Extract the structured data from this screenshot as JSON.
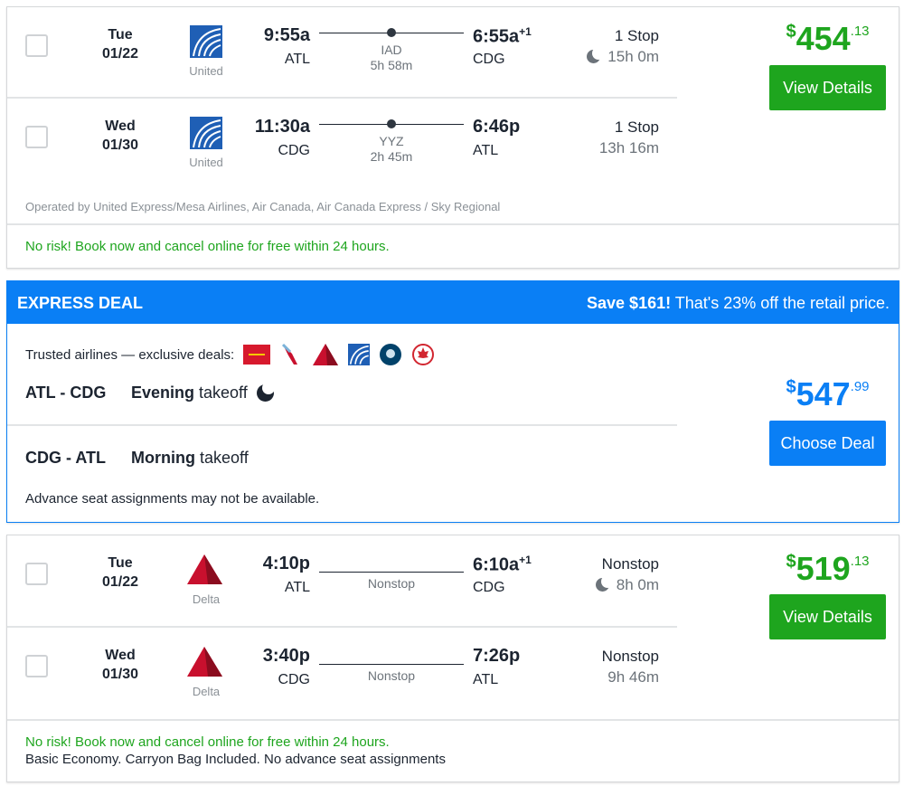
{
  "cards": [
    {
      "legs": [
        {
          "day": "Tue",
          "date": "01/22",
          "airline": "United",
          "dep_time": "9:55a",
          "dep_airport": "ATL",
          "via": "IAD",
          "via_duration": "5h 58m",
          "arr_time": "6:55a",
          "arr_offset": "+1",
          "arr_airport": "CDG",
          "stops": "1 Stop",
          "duration": "15h 0m",
          "overnight": true
        },
        {
          "day": "Wed",
          "date": "01/30",
          "airline": "United",
          "dep_time": "11:30a",
          "dep_airport": "CDG",
          "via": "YYZ",
          "via_duration": "2h 45m",
          "arr_time": "6:46p",
          "arr_offset": "",
          "arr_airport": "ATL",
          "stops": "1 Stop",
          "duration": "13h 16m",
          "overnight": false
        }
      ],
      "price": {
        "currency": "$",
        "dollars": "454",
        "cents": ".13"
      },
      "button": "View Details",
      "operated_by": "Operated by United Express/Mesa Airlines, Air Canada, Air Canada Express / Sky Regional",
      "no_risk": "No risk! Book now and cancel online for free within 24 hours."
    },
    {
      "legs": [
        {
          "day": "Tue",
          "date": "01/22",
          "airline": "Delta",
          "dep_time": "4:10p",
          "dep_airport": "ATL",
          "via": "Nonstop",
          "arr_time": "6:10a",
          "arr_offset": "+1",
          "arr_airport": "CDG",
          "stops": "Nonstop",
          "duration": "8h 0m",
          "overnight": true
        },
        {
          "day": "Wed",
          "date": "01/30",
          "airline": "Delta",
          "dep_time": "3:40p",
          "dep_airport": "CDG",
          "via": "Nonstop",
          "arr_time": "7:26p",
          "arr_offset": "",
          "arr_airport": "ATL",
          "stops": "Nonstop",
          "duration": "9h 46m",
          "overnight": false
        }
      ],
      "price": {
        "currency": "$",
        "dollars": "519",
        "cents": ".13"
      },
      "button": "View Details",
      "no_risk": "No risk! Book now and cancel online for free within 24 hours.",
      "note": "Basic Economy. Carryon Bag Included. No advance seat assignments"
    }
  ],
  "express": {
    "title": "EXPRESS DEAL",
    "save_bold": "Save $161!",
    "save_rest": " That's 23% off the retail price.",
    "trusted": "Trusted airlines — exclusive deals:",
    "airline_icons": [
      "iberia-icon",
      "american-icon",
      "delta-icon",
      "united-icon",
      "alaska-icon",
      "air-canada-icon"
    ],
    "leg1_route": "ATL - CDG",
    "leg1_time_bold": "Evening",
    "leg1_time_rest": " takeoff",
    "leg2_route": "CDG - ATL",
    "leg2_time_bold": "Morning",
    "leg2_time_rest": " takeoff",
    "note": "Advance seat assignments may not be available.",
    "price": {
      "currency": "$",
      "dollars": "547",
      "cents": ".99"
    },
    "button": "Choose Deal"
  },
  "colors": {
    "green": "#1ea51e",
    "blue": "#0a7ff5"
  }
}
